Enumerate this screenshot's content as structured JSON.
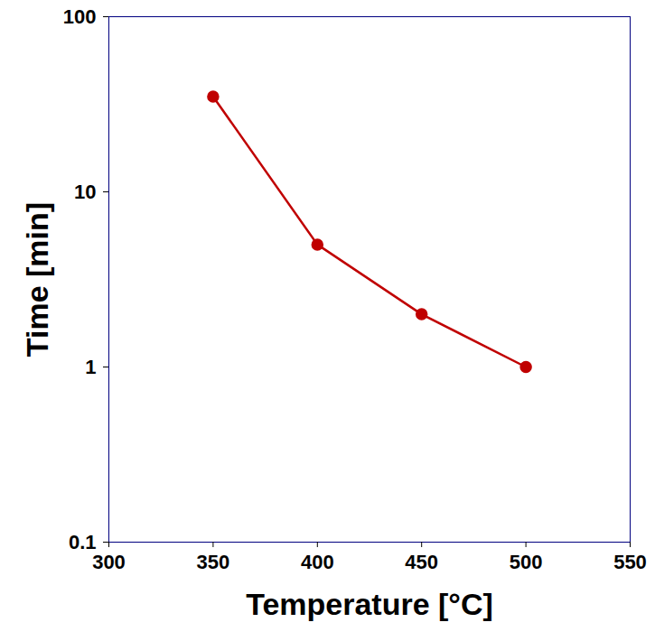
{
  "chart_data": {
    "type": "line",
    "x_label": "Temperature [°C]",
    "y_label": "Time [min]",
    "x": [
      350,
      400,
      450,
      500
    ],
    "values": [
      35,
      5,
      2,
      1
    ],
    "color": "#c00000",
    "marker": "circle",
    "log": "y",
    "xlim": [
      300,
      550
    ],
    "xticks": [
      300,
      350,
      400,
      450,
      500,
      550
    ],
    "ylim": [
      0.1,
      100
    ],
    "yticks": [
      0.1,
      1,
      10,
      100
    ],
    "grid": false
  }
}
